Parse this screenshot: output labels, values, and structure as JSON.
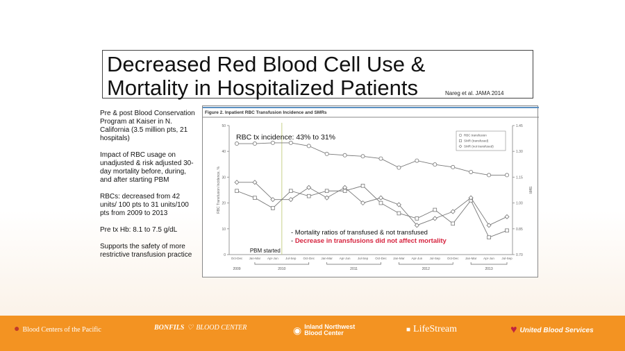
{
  "title": {
    "line1": "Decreased Red Blood Cell Use &",
    "line2": "Mortality in Hospitalized Patients",
    "citation": "Nareg   et al. JAMA 2014"
  },
  "bullets": [
    "Pre & post Blood Conservation Program at Kaiser in N. California (3.5  million pts, 21 hospitals)",
    "Impact of RBC usage on unadjusted & risk adjusted 30-day mortality before, during, and after starting PBM",
    "RBCs: decreased from 42 units/ 100 pts to 31 units/100 pts from 2009 to 2013",
    "Pre tx Hb: 8.1 to 7.5 g/dL",
    "Supports the safety of more restrictive transfusion practice"
  ],
  "chart_data": {
    "type": "line",
    "title": "Figure 2. Inpatient RBC Transfusion Incidence and SMRs",
    "ylabel": "RBC Transfusion Incidence, %",
    "y2label": "SMR",
    "ylim": [
      0,
      50
    ],
    "y2lim": [
      0.7,
      1.45
    ],
    "yticks": [
      "0",
      "10",
      "20",
      "30",
      "40",
      "50"
    ],
    "y2ticks": [
      "0.70",
      "0.85",
      "1.00",
      "1.15",
      "1.30",
      "1.45"
    ],
    "categories": [
      "Oct-Dec",
      "Jan-Mar",
      "Apr-Jun",
      "Jul-Sep",
      "Oct-Dec",
      "Jan-Mar",
      "Apr-Jun",
      "Jul-Sep",
      "Oct-Dec",
      "Jan-Mar",
      "Apr-Jun",
      "Jul-Sep",
      "Oct-Dec",
      "Jan-Mar",
      "Apr-Jun",
      "Jul-Sep"
    ],
    "years": [
      {
        "label": "2009",
        "from": 0,
        "to": 0
      },
      {
        "label": "2010",
        "from": 1,
        "to": 4
      },
      {
        "label": "2011",
        "from": 5,
        "to": 8
      },
      {
        "label": "2012",
        "from": 9,
        "to": 12
      },
      {
        "label": "2013",
        "from": 13,
        "to": 15
      }
    ],
    "series": [
      {
        "name": "RBC transfusion",
        "axis": "left",
        "marker": "circle",
        "values": [
          43,
          43,
          43.3,
          43.3,
          42.1,
          39,
          38.5,
          38.1,
          37.2,
          33.7,
          36.4,
          34.9,
          33.9,
          32,
          30.8,
          30.8
        ]
      },
      {
        "name": "SMR (transfused)",
        "axis": "right",
        "marker": "square",
        "values": [
          1.07,
          1.03,
          0.97,
          1.07,
          1.04,
          1.07,
          1.07,
          1.1,
          1.0,
          0.94,
          0.91,
          0.96,
          0.88,
          1.015,
          0.8,
          0.84
        ]
      },
      {
        "name": "SMR (not transfused)",
        "axis": "right",
        "marker": "diamond",
        "values": [
          1.12,
          1.12,
          1.02,
          1.02,
          1.09,
          1.03,
          1.09,
          1.0,
          1.03,
          0.99,
          0.87,
          0.91,
          0.95,
          1.03,
          0.87,
          0.92
        ]
      }
    ],
    "legend": "top-right",
    "annotations": {
      "incidence": "RBC tx incidence: 43% to 31%",
      "pbm": "PBM started",
      "pbm_index": 2.5,
      "note1": "- Mortality ratios of transfused & not transfused",
      "note2_dash": "- ",
      "note2": "Decrease in transfusions did not affect mortality"
    },
    "colors": {
      "line": "#777777",
      "pbm": "#c8d08a",
      "note2": "#d6243f",
      "rule": "#5b8fc0"
    }
  },
  "footer": {
    "logos": [
      "Blood Centers of the Pacific",
      "BONFILS",
      "BLOOD CENTER",
      "Inland Northwest",
      "Blood Center",
      "LifeStream",
      "United Blood Services"
    ],
    "color": "#f39322"
  }
}
